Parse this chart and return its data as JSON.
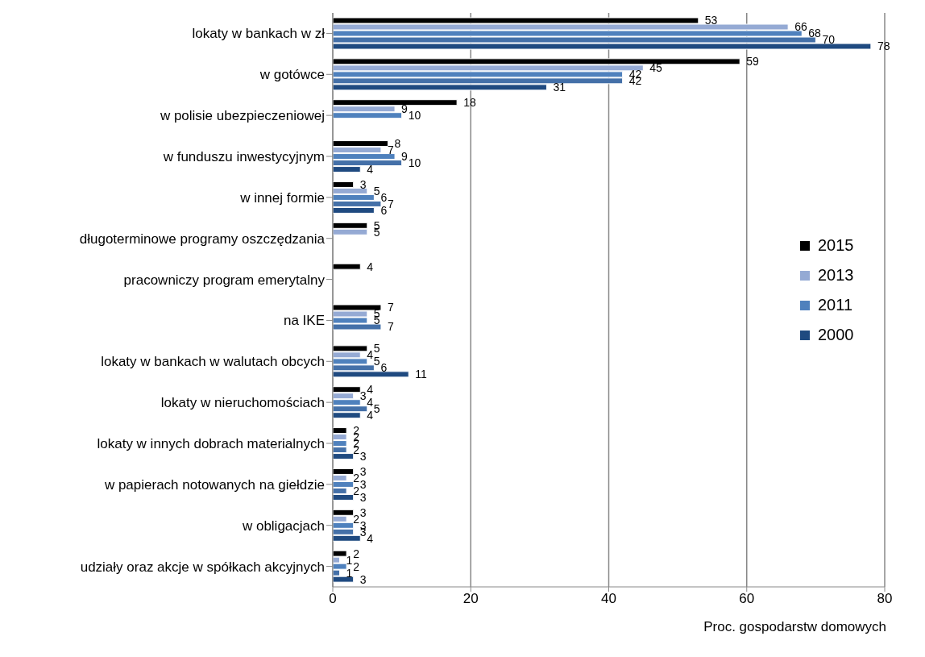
{
  "chart_data": {
    "type": "bar",
    "orientation": "horizontal",
    "xlabel": "Proc. gospodarstw domowych",
    "categories": [
      "lokaty w bankach w zł",
      "w gotówce",
      "w polisie ubezpieczeniowej",
      "w funduszu inwestycyjnym",
      "w innej formie",
      "długoterminowe programy oszczędzania",
      "pracowniczy program emerytalny",
      "na IKE",
      "lokaty w bankach  w walutach obcych",
      "lokaty w nieruchomościach",
      "lokaty w innych dobrach materialnych",
      "w papierach notowanych na giełdzie",
      "w obligacjach",
      "udziały oraz akcje w spółkach akcyjnych"
    ],
    "series": [
      {
        "name": "2015",
        "color": "#000000",
        "values": [
          53,
          59,
          18,
          8,
          3,
          5,
          4,
          7,
          5,
          4,
          2,
          3,
          3,
          2
        ]
      },
      {
        "name": "2013",
        "color": "#95aad4",
        "values": [
          66,
          45,
          9,
          7,
          5,
          5,
          null,
          5,
          4,
          3,
          2,
          2,
          2,
          1
        ]
      },
      {
        "name": "2011",
        "color": "#4f81bd",
        "values": [
          68,
          42,
          10,
          9,
          6,
          null,
          null,
          5,
          5,
          4,
          2,
          3,
          3,
          2
        ]
      },
      {
        "color": "#4470a8",
        "values": [
          70,
          42,
          null,
          10,
          7,
          null,
          null,
          7,
          6,
          5,
          2,
          2,
          3,
          1
        ]
      },
      {
        "name": "2000",
        "color": "#1f4a80",
        "values": [
          78,
          31,
          null,
          4,
          6,
          null,
          null,
          null,
          11,
          4,
          3,
          3,
          4,
          3
        ]
      }
    ],
    "xlim": [
      0,
      80
    ],
    "xticks": [
      0,
      20,
      40,
      60,
      80
    ],
    "grid": "x",
    "legend": "right",
    "data_labels": true
  }
}
